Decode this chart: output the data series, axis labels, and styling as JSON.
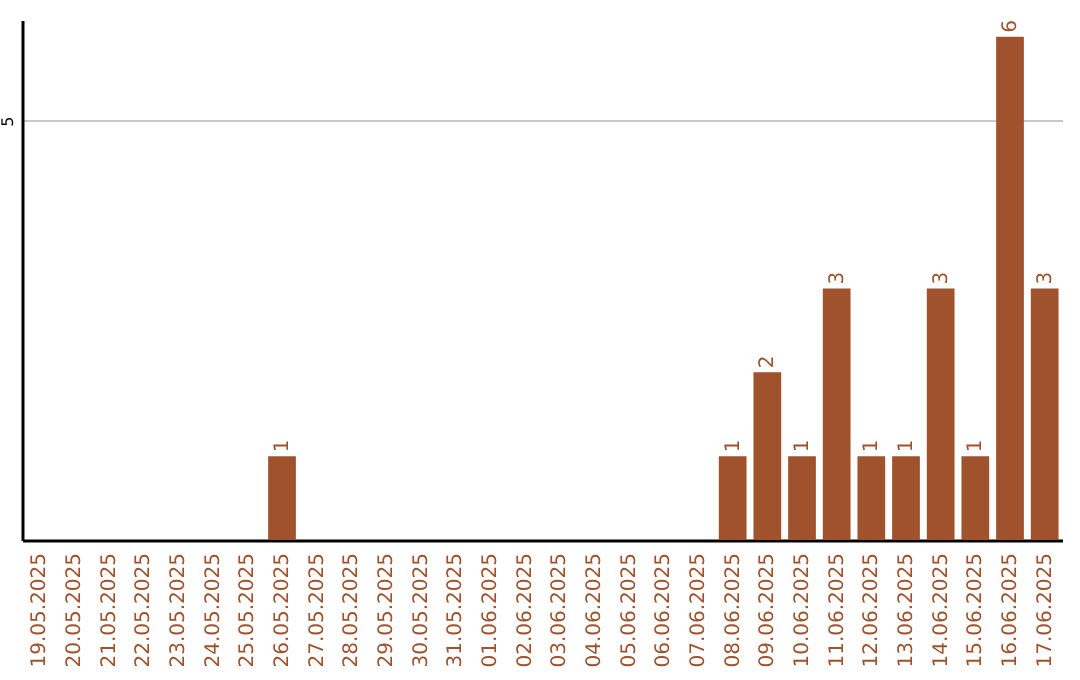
{
  "chart_data": {
    "type": "bar",
    "categories": [
      "19.05.2025",
      "20.05.2025",
      "21.05.2025",
      "22.05.2025",
      "23.05.2025",
      "24.05.2025",
      "25.05.2025",
      "26.05.2025",
      "27.05.2025",
      "28.05.2025",
      "29.05.2025",
      "30.05.2025",
      "31.05.2025",
      "01.06.2025",
      "02.06.2025",
      "03.06.2025",
      "04.06.2025",
      "05.06.2025",
      "06.06.2025",
      "07.06.2025",
      "08.06.2025",
      "09.06.2025",
      "10.06.2025",
      "11.06.2025",
      "12.06.2025",
      "13.06.2025",
      "14.06.2025",
      "15.06.2025",
      "16.06.2025",
      "17.06.2025"
    ],
    "values": [
      0,
      0,
      0,
      0,
      0,
      0,
      0,
      1,
      0,
      0,
      0,
      0,
      0,
      0,
      0,
      0,
      0,
      0,
      0,
      0,
      1,
      2,
      1,
      3,
      1,
      1,
      3,
      1,
      6,
      3
    ],
    "value_labels": [
      null,
      null,
      null,
      null,
      null,
      null,
      null,
      "1",
      null,
      null,
      null,
      null,
      null,
      null,
      null,
      null,
      null,
      null,
      null,
      null,
      "1",
      "2",
      "1",
      "3",
      "1",
      "1",
      "3",
      "1",
      "6",
      "3"
    ],
    "color": "#a0522d",
    "ylim": [
      0,
      6.2
    ],
    "yticks": [
      5
    ],
    "grid": "y"
  }
}
